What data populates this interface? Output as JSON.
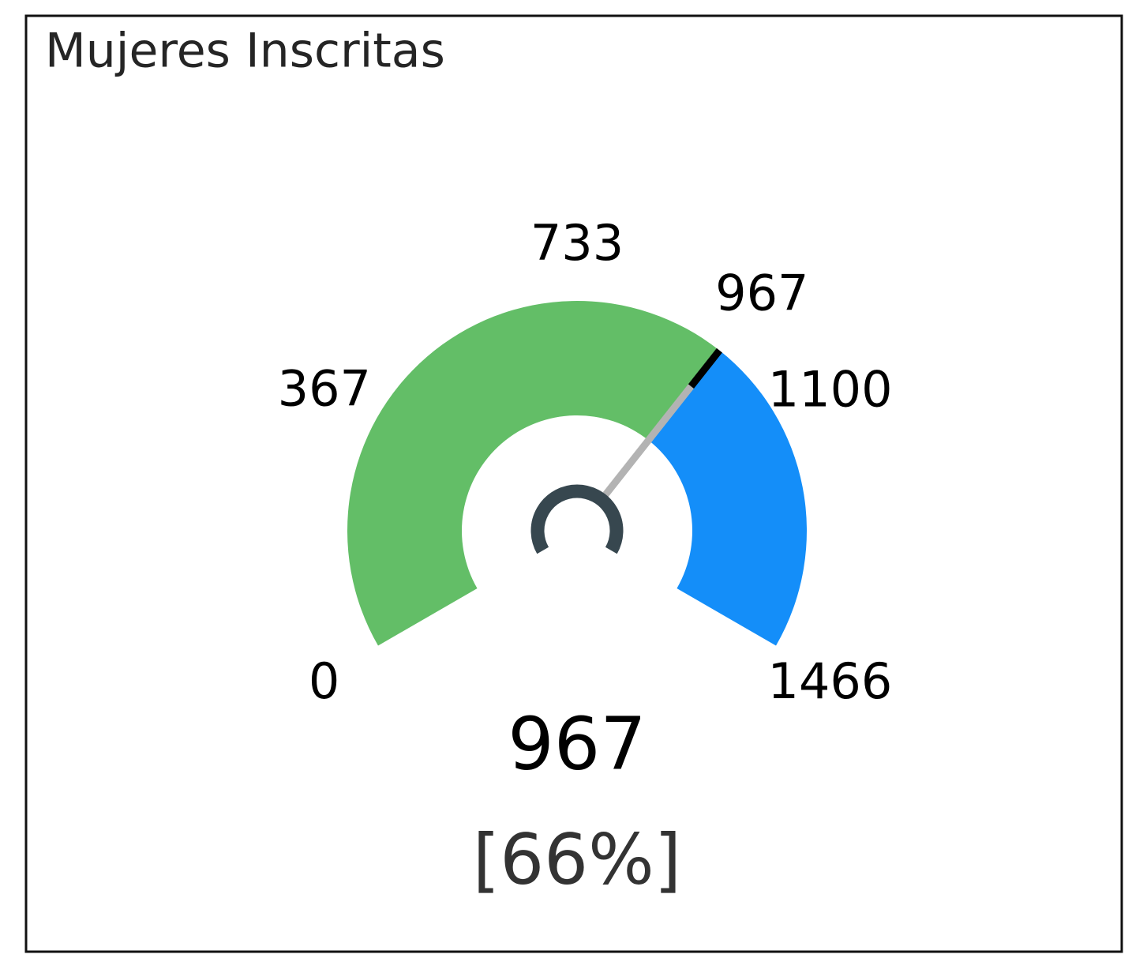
{
  "chart_data": {
    "type": "gauge",
    "title": "Mujeres Inscritas",
    "min": 0,
    "max": 1466,
    "value": 967,
    "color": "#63be67",
    "track_color": "#148ef9",
    "target": 967,
    "target_color": "#000000",
    "needle_color": "#b3b3b3",
    "hub_color": "#37474f",
    "ticks": [
      0,
      367,
      733,
      1100,
      1466
    ],
    "percent": 66,
    "percent_label": "[66%]"
  }
}
